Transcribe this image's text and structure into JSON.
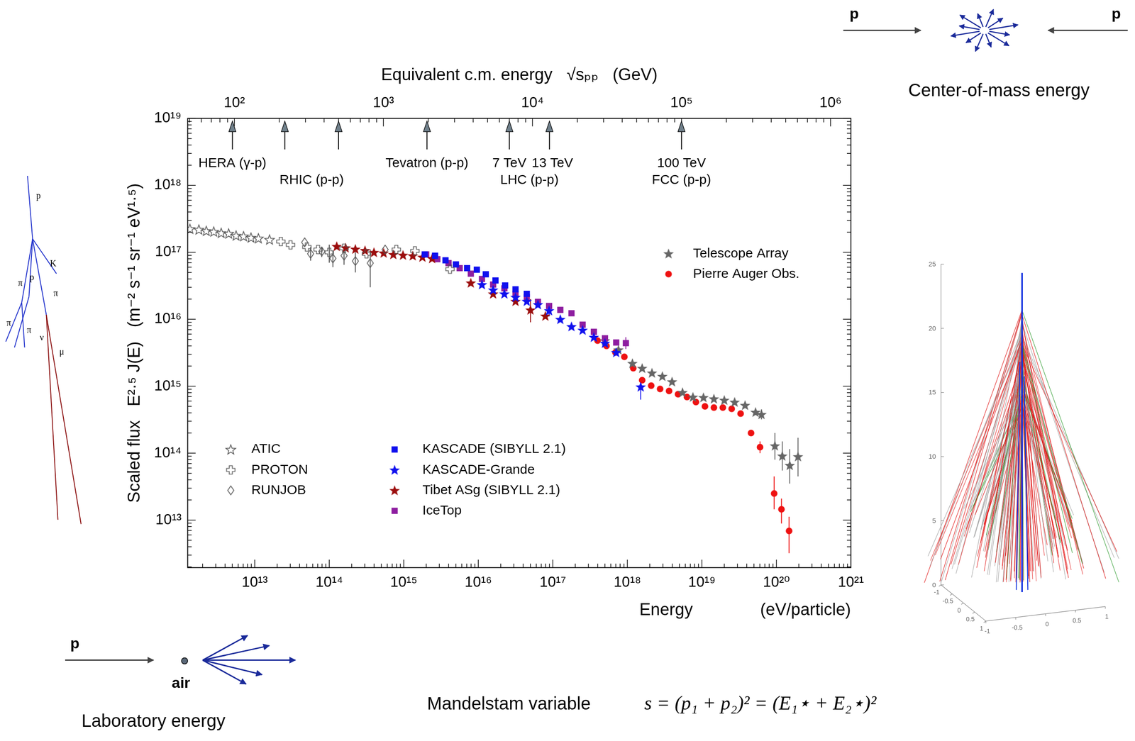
{
  "chart_data": {
    "type": "scatter",
    "x2label": "Equivalent c.m. energy   √sₚₚ   (GeV)",
    "xlabel": "Energy",
    "xlabel_units": "(eV/particle)",
    "ylabel": "Scaled flux   E²·⁵ J(E)   (m⁻² s⁻¹ sr⁻¹ eV¹·⁵)",
    "log": true,
    "grid": false,
    "legend": "lower left",
    "xlim": [
      1260000000000.0,
      1e+21
    ],
    "xticks": [
      {
        "value": 10000000000000.0,
        "label": "10¹³"
      },
      {
        "value": 100000000000000.0,
        "label": "10¹⁴"
      },
      {
        "value": 1000000000000000.0,
        "label": "10¹⁵"
      },
      {
        "value": 1e+16,
        "label": "10¹⁶"
      },
      {
        "value": 1e+17,
        "label": "10¹⁷"
      },
      {
        "value": 1e+18,
        "label": "10¹⁸"
      },
      {
        "value": 1e+19,
        "label": "10¹⁹"
      },
      {
        "value": 1e+20,
        "label": "10²⁰"
      },
      {
        "value": 1e+21,
        "label": "10²¹"
      }
    ],
    "ylim": [
      1950000000000.0,
      1e+19
    ],
    "yticks": [
      {
        "value": 10000000000000.0,
        "label": "10¹³"
      },
      {
        "value": 100000000000000.0,
        "label": "10¹⁴"
      },
      {
        "value": 1000000000000000.0,
        "label": "10¹⁵"
      },
      {
        "value": 1e+16,
        "label": "10¹⁶"
      },
      {
        "value": 1e+17,
        "label": "10¹⁷"
      },
      {
        "value": 1e+18,
        "label": "10¹⁸"
      },
      {
        "value": 1e+19,
        "label": "10¹⁹"
      }
    ],
    "x2lim": [
      48.6,
      1370000.0
    ],
    "x2ticks": [
      {
        "value": 100,
        "label": "10²"
      },
      {
        "value": 1000,
        "label": "10³"
      },
      {
        "value": 10000,
        "label": "10⁴"
      },
      {
        "value": 100000,
        "label": "10⁵"
      },
      {
        "value": 1000000,
        "label": "10⁶"
      }
    ],
    "accelerators": [
      {
        "name": "HERA (γ-p)",
        "arrows": [
          97
        ]
      },
      {
        "name": "RHIC (p-p)",
        "arrows": [
          218,
          500
        ]
      },
      {
        "name": "Tevatron (p-p)",
        "arrows": [
          1960
        ]
      },
      {
        "name": "LHC (p-p)",
        "arrows": [
          {
            "value": 7000,
            "label": "7 TeV"
          },
          {
            "value": 13000,
            "label": "13 TeV"
          }
        ]
      },
      {
        "name": "FCC (p-p)",
        "arrows": [
          {
            "value": 100000,
            "label": "100 TeV"
          }
        ]
      }
    ],
    "series": [
      {
        "name": "ATIC",
        "color": "#555555",
        "marker": "open_star",
        "x": [
          1350000000000.0,
          1780000000000.0,
          2240000000000.0,
          2820000000000.0,
          3550000000000.0,
          4470000000000.0,
          5620000000000.0,
          7080000000000.0,
          8910000000000.0,
          11200000000000.0,
          15800000000000.0
        ],
        "values": [
          2.24e+17,
          2.19e+17,
          2.09e+17,
          2.04e+17,
          1.95e+17,
          1.91e+17,
          1.78e+17,
          1.74e+17,
          1.66e+17,
          1.62e+17,
          1.55e+17
        ]
      },
      {
        "name": "PROTON",
        "color": "#555555",
        "marker": "open_cross",
        "x": [
          22400000000000.0,
          30200000000000.0,
          50100000000000.0,
          70800000000000.0,
          100000000000000.0,
          158000000000000.0,
          316000000000000.0,
          794000000000000.0,
          1410000000000000.0,
          4170000000000000.0
        ],
        "values": [
          1.45e+17,
          1.29e+17,
          1.2e+17,
          1.1e+17,
          1e+17,
          1.15e+17,
          9.5e+16,
          1.1e+17,
          1.05e+17,
          5.6e+16
        ],
        "errors": [
          null,
          null,
          null,
          null,
          [
            7e+16,
            1.3e+17
          ],
          null,
          null,
          null,
          null,
          null
        ]
      },
      {
        "name": "RUNJOB",
        "color": "#555555",
        "marker": "open_diamond",
        "x": [
          46800000000000.0,
          56200000000000.0,
          79400000000000.0,
          112000000000000.0,
          158000000000000.0,
          224000000000000.0,
          355000000000000.0,
          562000000000000.0
        ],
        "values": [
          1.41e+17,
          9.5e+16,
          1.03e+17,
          8.1e+16,
          8.9e+16,
          7.4e+16,
          6.9e+16,
          1.1e+17
        ],
        "errors": [
          null,
          [
            7.5e+16,
            1.2e+17
          ],
          [
            8.5e+16,
            1.2e+17
          ],
          [
            6e+16,
            1.05e+17
          ],
          [
            6.5e+16,
            1.15e+17
          ],
          [
            5e+16,
            1e+17
          ],
          [
            3e+16,
            1.1e+17
          ],
          null
        ]
      },
      {
        "name": "KASCADE (SIBYLL 2.1)",
        "color": "#1010ee",
        "marker": "square",
        "x": [
          1910000000000000.0,
          2630000000000000.0,
          3630000000000000.0,
          5010000000000000.0,
          7080000000000000.0,
          9550000000000000.0,
          1.26e+16,
          1.7e+16,
          2.29e+16,
          3.16e+16,
          4.47e+16
        ],
        "values": [
          9.3e+16,
          8.9e+16,
          7.6e+16,
          6.6e+16,
          5.8e+16,
          5.5e+16,
          4.7e+16,
          3.8e+16,
          3.2e+16,
          2.8e+16,
          2.4e+16
        ]
      },
      {
        "name": "KASCADE-Grande",
        "color": "#1010ee",
        "marker": "star",
        "x": [
          1.12e+16,
          1.58e+16,
          2.24e+16,
          3.16e+16,
          4.47e+16,
          6.31e+16,
          8.91e+16,
          1.26e+17,
          1.78e+17,
          2.51e+17,
          3.55e+17,
          5.01e+17,
          7.08e+17,
          1.51e+18
        ],
        "values": [
          3.3e+16,
          2.75e+16,
          2.4e+16,
          2.14e+16,
          1.86e+16,
          1.66e+16,
          1.35e+16,
          1e+16,
          7800000000000000.0,
          6900000000000000.0,
          5400000000000000.0,
          4400000000000000.0,
          3200000000000000.0,
          980000000000000.0
        ],
        "errors": [
          null,
          null,
          null,
          null,
          null,
          null,
          [
            1.1e+16,
            1.65e+16
          ],
          null,
          null,
          null,
          null,
          null,
          null,
          [
            630000000000000.0,
            1350000000000000.0
          ]
        ]
      },
      {
        "name": "Tibet ASg (SIBYLL 2.1)",
        "color": "#9b0d0d",
        "marker": "star",
        "x": [
          126000000000000.0,
          166000000000000.0,
          224000000000000.0,
          302000000000000.0,
          398000000000000.0,
          537000000000000.0,
          724000000000000.0,
          977000000000000.0,
          1320000000000000.0,
          1780000000000000.0,
          2400000000000000.0,
          7940000000000000.0,
          1.58e+16,
          3.16e+16,
          5.01e+16,
          7.94e+16
        ],
        "values": [
          1.23e+17,
          1.17e+17,
          1.12e+17,
          1.07e+17,
          1e+17,
          9.8e+16,
          9.3e+16,
          9.1e+16,
          8.9e+16,
          8.5e+16,
          8.1e+16,
          3.5e+16,
          2.4e+16,
          1.86e+16,
          1.38e+16,
          1.12e+16
        ],
        "errors": [
          null,
          null,
          null,
          null,
          null,
          null,
          null,
          null,
          null,
          null,
          null,
          null,
          null,
          null,
          [
            9000000000000000.0,
            2e+16
          ],
          null
        ]
      },
      {
        "name": "IceTop",
        "color": "#8e1ea0",
        "marker": "square",
        "x": [
          2000000000000000.0,
          2820000000000000.0,
          3980000000000000.0,
          5620000000000000.0,
          7940000000000000.0,
          1.12e+16,
          1.58e+16,
          2.24e+16,
          3.16e+16,
          4.47e+16,
          6.31e+16,
          8.91e+16,
          1.26e+17,
          1.78e+17,
          2.51e+17,
          3.55e+17,
          5.01e+17,
          7.08e+17,
          9.55e+17
        ],
        "values": [
          9.3e+16,
          7.9e+16,
          6.9e+16,
          5.8e+16,
          4.8e+16,
          4e+16,
          3.3e+16,
          2.9e+16,
          2.4e+16,
          2.14e+16,
          1.82e+16,
          1.58e+16,
          1.38e+16,
          1.23e+16,
          8300000000000000.0,
          6500000000000000.0,
          5200000000000000.0,
          4500000000000000.0,
          4400000000000000.0
        ],
        "errors": [
          null,
          null,
          null,
          null,
          null,
          null,
          null,
          null,
          null,
          null,
          null,
          null,
          null,
          null,
          null,
          null,
          null,
          null,
          [
            3600000000000000.0,
            5400000000000000.0
          ]
        ]
      },
      {
        "name": "Telescope Array",
        "color": "#666666",
        "marker": "star",
        "x": [
          5.01e+17,
          7.59e+17,
          1.17e+18,
          1.58e+18,
          2.14e+18,
          2.95e+18,
          3.98e+18,
          5.5e+18,
          7.59e+18,
          1.05e+19,
          1.45e+19,
          2e+19,
          2.75e+19,
          3.8e+19,
          5.25e+19,
          6.31e+19,
          9.55e+19,
          1.2e+20,
          1.51e+20,
          1.95e+20
        ],
        "values": [
          4800000000000000.0,
          3500000000000000.0,
          2200000000000000.0,
          1860000000000000.0,
          1580000000000000.0,
          1410000000000000.0,
          1170000000000000.0,
          810000000000000.0,
          690000000000000.0,
          680000000000000.0,
          650000000000000.0,
          620000000000000.0,
          580000000000000.0,
          520000000000000.0,
          410000000000000.0,
          380000000000000.0,
          129000000000000.0,
          91000000000000.0,
          66000000000000.0,
          89000000000000.0
        ],
        "errors": [
          null,
          null,
          null,
          null,
          null,
          null,
          null,
          null,
          null,
          null,
          null,
          null,
          null,
          null,
          null,
          [
            320000000000000.0,
            450000000000000.0
          ],
          [
            80000000000000.0,
            200000000000000.0
          ],
          [
            55000000000000.0,
            150000000000000.0
          ],
          [
            35000000000000.0,
            115000000000000.0
          ],
          [
            45000000000000.0,
            170000000000000.0
          ]
        ]
      },
      {
        "name": "Pierre Auger Obs.",
        "color": "#ee1111",
        "marker": "circle",
        "x": [
          3.98e+17,
          5.25e+17,
          6.92e+17,
          9.12e+17,
          1.2e+18,
          1.58e+18,
          2.09e+18,
          2.75e+18,
          3.63e+18,
          4.79e+18,
          6.31e+18,
          8.32e+18,
          1.1e+19,
          1.45e+19,
          1.91e+19,
          2.51e+19,
          3.31e+19,
          4.57e+19,
          6.03e+19,
          9.33e+19,
          1.17e+20,
          1.48e+20
        ],
        "values": [
          4800000000000000.0,
          4000000000000000.0,
          3200000000000000.0,
          2750000000000000.0,
          1860000000000000.0,
          1230000000000000.0,
          1020000000000000.0,
          910000000000000.0,
          850000000000000.0,
          760000000000000.0,
          690000000000000.0,
          580000000000000.0,
          500000000000000.0,
          480000000000000.0,
          480000000000000.0,
          460000000000000.0,
          390000000000000.0,
          200000000000000.0,
          123000000000000.0,
          25000000000000.0,
          14500000000000.0,
          6900000000000.0
        ],
        "errors": [
          null,
          null,
          null,
          null,
          null,
          null,
          null,
          null,
          null,
          null,
          null,
          null,
          null,
          null,
          null,
          null,
          null,
          null,
          [
            100000000000000.0,
            150000000000000.0
          ],
          [
            14500000000000.0,
            45000000000000.0
          ],
          [
            8900000000000.0,
            21000000000000.0
          ],
          [
            3200000000000.0,
            11200000000000.0
          ]
        ]
      }
    ]
  },
  "cascade_diagram": {
    "labels": [
      "p",
      "K",
      "π",
      "p",
      "π",
      "π",
      "π",
      "ν",
      "μ"
    ]
  },
  "lab_frame": {
    "projectile": "p",
    "target": "air",
    "caption": "Laboratory energy"
  },
  "cm_frame": {
    "beams": [
      "p",
      "p"
    ],
    "caption": "Center-of-mass energy"
  },
  "mandelstam": {
    "label": "Mandelstam variable",
    "formula": "s = (p₁ + p₂)² = (E₁⋆ + E₂⋆)²"
  },
  "shower_simulation": {
    "zticks": [
      0,
      5,
      10,
      15,
      20,
      25
    ],
    "xticks": [
      -1,
      -0.5,
      0,
      0.5,
      1
    ],
    "yticks": [
      -1,
      -0.5,
      0,
      0.5,
      1
    ]
  }
}
